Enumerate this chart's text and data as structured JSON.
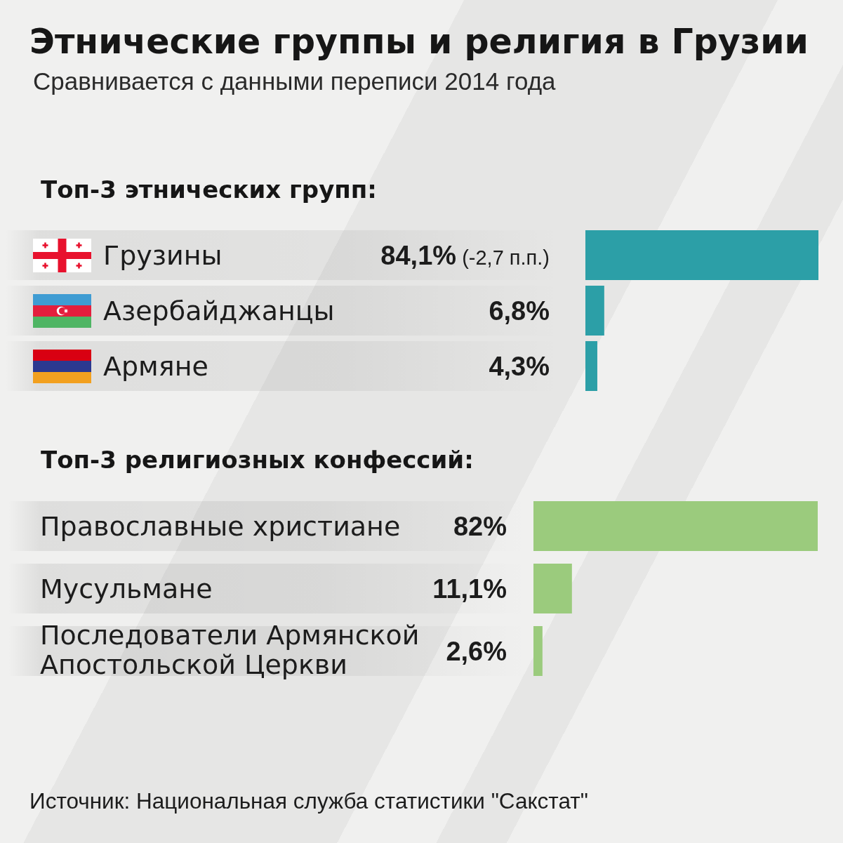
{
  "chart_data": [
    {
      "type": "other",
      "title": "Этнические группы и религия в Грузии",
      "subtitle": "Сравнивается с данными переписи 2014 года"
    },
    {
      "type": "bar",
      "orientation": "horizontal",
      "title": "Топ-3 этнических групп:",
      "categories": [
        "Грузины",
        "Азербайджанцы",
        "Армяне"
      ],
      "values": [
        84.1,
        6.8,
        4.3
      ],
      "value_labels": [
        "84,1% (-2,7 п.п.)",
        "6,8%",
        "4,3%"
      ],
      "color": "#2c9fa7"
    },
    {
      "type": "bar",
      "orientation": "horizontal",
      "title": "Топ-3 религиозных конфессий:",
      "categories": [
        "Православные христиане",
        "Мусульмане",
        "Последователи Армянской Апостольской Церкви"
      ],
      "values": [
        82,
        11.1,
        2.6
      ],
      "value_labels": [
        "82%",
        "11,1%",
        "2,6%"
      ],
      "color": "#9bcb7d",
      "annotations": [
        "Источник: Национальная служба статистики \"Сакстат\""
      ]
    }
  ]
}
